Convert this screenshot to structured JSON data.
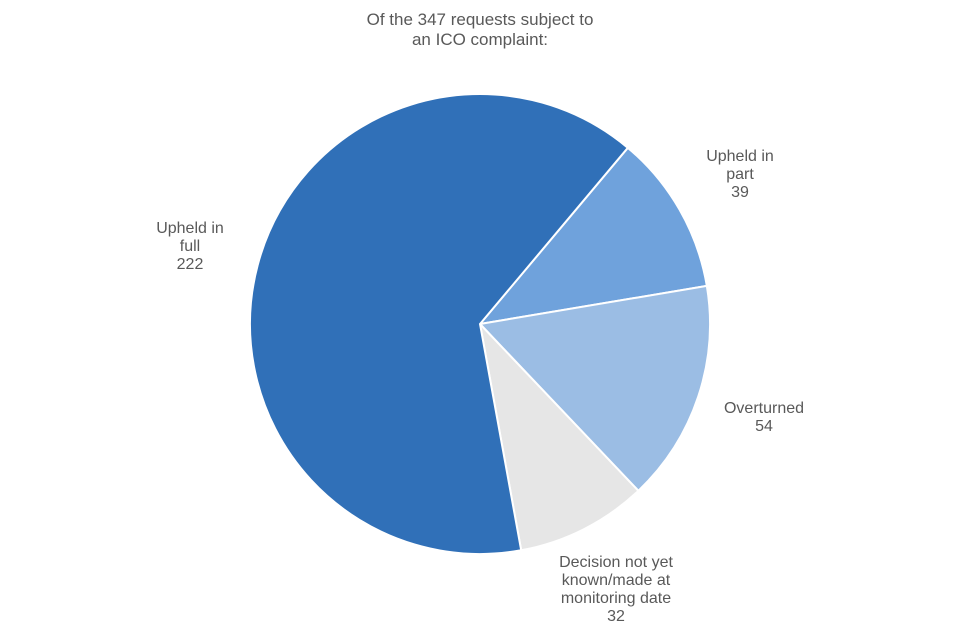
{
  "chart_data": {
    "type": "pie",
    "title": "Of the 347 requests subject to an ICO complaint:",
    "categories": [
      "Upheld in part",
      "Overturned",
      "Decision not yet known/made at monitoring date",
      "Upheld in full"
    ],
    "values": [
      39,
      54,
      32,
      222
    ],
    "colors": [
      "#6fa2dc",
      "#9bbde4",
      "#e6e6e6",
      "#3070b8"
    ]
  }
}
